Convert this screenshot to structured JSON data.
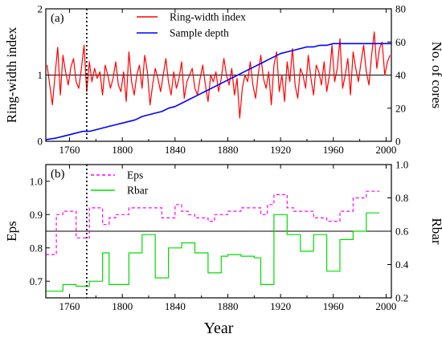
{
  "chart_data": [
    {
      "type": "line",
      "panel_label": "(a)",
      "ylabel_left": "Ring-width index",
      "ylabel_right": "No. of cores",
      "xlim": [
        1742,
        2004
      ],
      "ylim_left": [
        0,
        2
      ],
      "ylim_right": [
        0,
        80
      ],
      "x_ticks": [
        "1760",
        "1800",
        "1840",
        "1880",
        "1920",
        "1960",
        "2000"
      ],
      "y_ticks_left": [
        "0",
        "1",
        "2"
      ],
      "y_ticks_right": [
        "0",
        "20",
        "40",
        "60",
        "80"
      ],
      "reference_line": 1,
      "divider_year": 1773,
      "legend": [
        "Ring-width index",
        "Sample depth"
      ],
      "legend_position": "top-center",
      "series": [
        {
          "name": "Ring-width index",
          "color": "#ff0000",
          "axis": "left",
          "x": [
            1743,
            1745,
            1747,
            1749,
            1751,
            1753,
            1755,
            1757,
            1759,
            1761,
            1763,
            1765,
            1767,
            1769,
            1771,
            1773,
            1775,
            1777,
            1779,
            1781,
            1783,
            1785,
            1787,
            1789,
            1791,
            1793,
            1795,
            1797,
            1799,
            1801,
            1803,
            1805,
            1807,
            1809,
            1811,
            1813,
            1815,
            1817,
            1819,
            1821,
            1823,
            1825,
            1827,
            1829,
            1831,
            1833,
            1835,
            1837,
            1839,
            1841,
            1843,
            1845,
            1847,
            1849,
            1851,
            1853,
            1855,
            1857,
            1859,
            1861,
            1863,
            1865,
            1867,
            1869,
            1871,
            1873,
            1875,
            1877,
            1879,
            1881,
            1883,
            1885,
            1887,
            1889,
            1891,
            1893,
            1895,
            1897,
            1899,
            1901,
            1903,
            1905,
            1907,
            1909,
            1911,
            1913,
            1915,
            1917,
            1919,
            1921,
            1923,
            1925,
            1927,
            1929,
            1931,
            1933,
            1935,
            1937,
            1939,
            1941,
            1943,
            1945,
            1947,
            1949,
            1951,
            1953,
            1955,
            1957,
            1959,
            1961,
            1963,
            1965,
            1967,
            1969,
            1971,
            1973,
            1975,
            1977,
            1979,
            1981,
            1983,
            1985,
            1987,
            1989,
            1991,
            1993,
            1995,
            1997,
            1999,
            2001,
            2003
          ],
          "y": [
            1.15,
            0.85,
            0.55,
            1.0,
            1.42,
            0.7,
            1.3,
            1.05,
            0.85,
            1.12,
            1.25,
            0.9,
            0.8,
            1.1,
            1.45,
            0.75,
            1.2,
            0.9,
            1.1,
            0.95,
            1.05,
            0.7,
            1.15,
            1.0,
            0.8,
            0.95,
            1.2,
            0.85,
            0.75,
            1.05,
            0.6,
            1.35,
            0.9,
            0.7,
            1.0,
            1.15,
            0.8,
            1.3,
            1.05,
            0.55,
            0.85,
            1.1,
            0.95,
            0.75,
            1.0,
            1.25,
            0.9,
            0.7,
            1.05,
            0.8,
            0.95,
            1.2,
            0.65,
            0.9,
            1.0,
            1.1,
            0.8,
            0.7,
            0.95,
            1.15,
            0.85,
            0.6,
            1.0,
            0.9,
            1.05,
            0.75,
            0.95,
            1.25,
            1.0,
            0.85,
            1.1,
            0.7,
            0.95,
            0.35,
            0.8,
            1.0,
            0.9,
            1.2,
            0.85,
            0.65,
            1.0,
            1.3,
            0.95,
            0.8,
            1.05,
            0.55,
            1.15,
            1.35,
            0.75,
            1.0,
            0.6,
            1.2,
            0.9,
            1.4,
            0.85,
            0.65,
            1.1,
            1.0,
            0.8,
            1.3,
            0.95,
            0.7,
            1.15,
            1.05,
            0.85,
            1.2,
            0.75,
            1.0,
            1.45,
            0.9,
            1.1,
            1.55,
            0.8,
            1.0,
            1.25,
            0.7,
            1.35,
            1.1,
            0.9,
            1.2,
            1.45,
            1.05,
            0.85,
            1.3,
            1.65,
            1.1,
            1.4,
            1.5,
            1.0,
            1.2,
            1.3
          ]
        },
        {
          "name": "Sample depth",
          "color": "#0000ff",
          "axis": "right",
          "x": [
            1742,
            1750,
            1755,
            1760,
            1765,
            1770,
            1775,
            1780,
            1785,
            1790,
            1795,
            1800,
            1805,
            1810,
            1815,
            1820,
            1825,
            1830,
            1835,
            1840,
            1845,
            1850,
            1855,
            1860,
            1865,
            1870,
            1875,
            1880,
            1885,
            1890,
            1895,
            1900,
            1905,
            1910,
            1915,
            1920,
            1925,
            1930,
            1935,
            1940,
            1945,
            1950,
            1955,
            1960,
            1970,
            1980,
            1990,
            2000,
            2004
          ],
          "y": [
            1,
            2,
            3,
            4,
            5,
            6,
            6,
            7,
            8,
            9,
            10,
            11,
            12,
            13,
            15,
            16,
            17,
            18,
            20,
            21,
            23,
            25,
            27,
            29,
            31,
            33,
            35,
            37,
            39,
            41,
            43,
            45,
            47,
            49,
            51,
            53,
            54,
            55,
            56,
            57,
            57,
            58,
            58,
            59,
            59,
            59,
            59,
            59,
            59
          ]
        }
      ]
    },
    {
      "type": "line",
      "panel_label": "(b)",
      "xlabel": "Year",
      "ylabel_left": "Eps",
      "ylabel_right": "Rbar",
      "xlim": [
        1742,
        2004
      ],
      "ylim_left": [
        0.65,
        1.05
      ],
      "ylim_right": [
        0.2,
        1.0
      ],
      "x_ticks": [
        "1760",
        "1800",
        "1840",
        "1880",
        "1920",
        "1960",
        "2000"
      ],
      "y_ticks_left": [
        "0.7",
        "0.8",
        "0.9",
        "1.0"
      ],
      "y_ticks_right": [
        "0.2",
        "0.4",
        "0.6",
        "0.8",
        "1.0"
      ],
      "reference_line": 0.85,
      "divider_year": 1773,
      "legend": [
        "Eps",
        "Rbar"
      ],
      "legend_position": "top-left",
      "series": [
        {
          "name": "Eps",
          "color": "#ff00ff",
          "dashed": true,
          "axis": "left",
          "x": [
            1742,
            1750,
            1750,
            1755,
            1755,
            1765,
            1765,
            1775,
            1775,
            1785,
            1785,
            1790,
            1790,
            1795,
            1795,
            1805,
            1805,
            1830,
            1830,
            1840,
            1840,
            1845,
            1845,
            1850,
            1850,
            1855,
            1855,
            1865,
            1865,
            1870,
            1870,
            1880,
            1880,
            1885,
            1885,
            1890,
            1890,
            1905,
            1905,
            1910,
            1910,
            1915,
            1915,
            1925,
            1925,
            1930,
            1930,
            1945,
            1945,
            1955,
            1955,
            1965,
            1965,
            1975,
            1975,
            1985,
            1985,
            1995
          ],
          "y": [
            0.78,
            0.78,
            0.9,
            0.9,
            0.91,
            0.91,
            0.83,
            0.83,
            0.92,
            0.92,
            0.87,
            0.87,
            0.89,
            0.89,
            0.9,
            0.9,
            0.92,
            0.92,
            0.89,
            0.89,
            0.93,
            0.93,
            0.91,
            0.91,
            0.9,
            0.9,
            0.89,
            0.89,
            0.88,
            0.88,
            0.9,
            0.9,
            0.91,
            0.91,
            0.91,
            0.91,
            0.92,
            0.92,
            0.9,
            0.9,
            0.93,
            0.93,
            0.96,
            0.96,
            0.92,
            0.92,
            0.91,
            0.91,
            0.89,
            0.89,
            0.88,
            0.88,
            0.91,
            0.91,
            0.95,
            0.95,
            0.97,
            0.97
          ]
        },
        {
          "name": "Rbar",
          "color": "#00dd00",
          "axis": "right",
          "x": [
            1742,
            1750,
            1750,
            1755,
            1755,
            1765,
            1765,
            1775,
            1775,
            1785,
            1785,
            1790,
            1790,
            1795,
            1795,
            1805,
            1805,
            1815,
            1815,
            1825,
            1825,
            1835,
            1835,
            1845,
            1845,
            1855,
            1855,
            1865,
            1865,
            1875,
            1875,
            1880,
            1880,
            1890,
            1890,
            1900,
            1900,
            1905,
            1905,
            1915,
            1915,
            1925,
            1925,
            1935,
            1935,
            1945,
            1945,
            1955,
            1955,
            1965,
            1965,
            1975,
            1975,
            1985,
            1985,
            1995
          ],
          "y": [
            0.24,
            0.24,
            0.24,
            0.24,
            0.28,
            0.28,
            0.27,
            0.27,
            0.3,
            0.3,
            0.47,
            0.47,
            0.28,
            0.28,
            0.28,
            0.28,
            0.47,
            0.47,
            0.58,
            0.58,
            0.32,
            0.32,
            0.5,
            0.5,
            0.53,
            0.53,
            0.47,
            0.47,
            0.35,
            0.35,
            0.45,
            0.45,
            0.46,
            0.46,
            0.45,
            0.45,
            0.44,
            0.44,
            0.28,
            0.28,
            0.7,
            0.7,
            0.58,
            0.58,
            0.48,
            0.48,
            0.58,
            0.58,
            0.36,
            0.36,
            0.55,
            0.55,
            0.6,
            0.6,
            0.71,
            0.71
          ]
        }
      ]
    }
  ]
}
